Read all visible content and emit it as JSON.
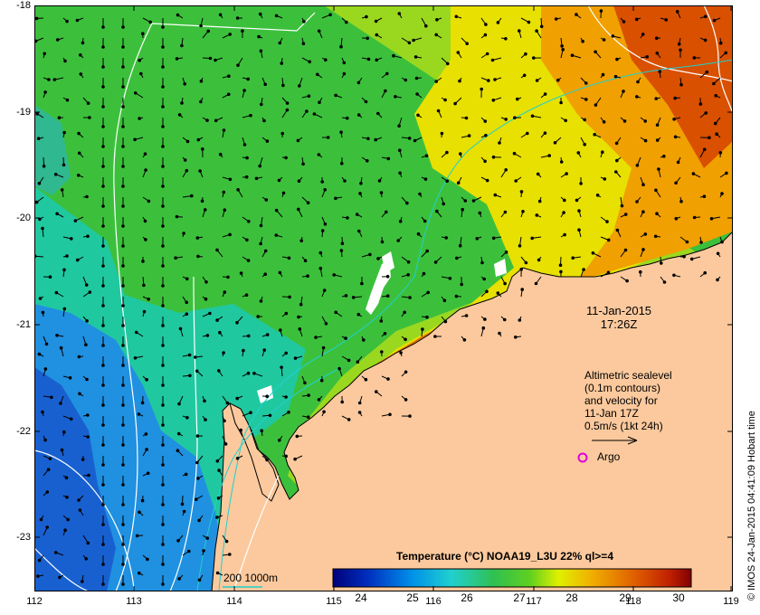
{
  "map": {
    "x_ticks": [
      "112",
      "113",
      "114",
      "115",
      "116",
      "117",
      "118",
      "119"
    ],
    "y_ticks": [
      "-18",
      "-19",
      "-20",
      "-21",
      "-22",
      "-23"
    ],
    "lon_range": [
      112,
      119
    ],
    "lat_range": [
      -23.55,
      -18.0
    ]
  },
  "annotations": {
    "date": "11-Jan-2015",
    "time": "17:26Z",
    "altimetry_lines": [
      "Altimetric sealevel",
      "(0.1m contours)",
      "and velocity for",
      "11-Jan 17Z",
      "0.5m/s (1kt 24h)"
    ],
    "argo": "Argo",
    "depth_contours": "200  1000m",
    "credit": "© IMOS 24-Jan-2015 04:41:09 Hobart time"
  },
  "colorbar": {
    "title": "Temperature (°C) NOAA19_L3U 22% ql>=4",
    "ticks": [
      "24",
      "25",
      "26",
      "27",
      "28",
      "29",
      "30"
    ],
    "range": [
      23.4,
      30.4
    ]
  },
  "colors": {
    "land": "#fbc99d",
    "cloud": "#ffffff",
    "contour": "#ffffff",
    "isobath": "#20d0d0",
    "argo": "#e000e0"
  }
}
